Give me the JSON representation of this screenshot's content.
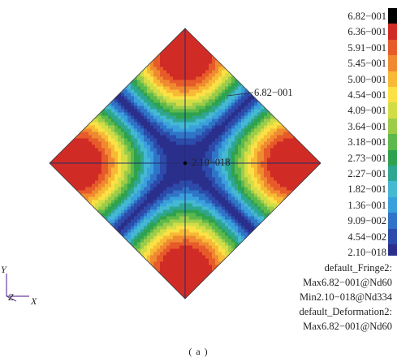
{
  "plot": {
    "max_marker_label": "6.82−001",
    "min_marker_label": "2.10−018"
  },
  "legend": {
    "levels": [
      {
        "label": "6.82−001",
        "color": "#000000"
      },
      {
        "label": "6.36−001",
        "color": "#d12b25"
      },
      {
        "label": "5.91−001",
        "color": "#e75b2a"
      },
      {
        "label": "5.45−001",
        "color": "#f08a30"
      },
      {
        "label": "5.00−001",
        "color": "#f7b936"
      },
      {
        "label": "4.54−001",
        "color": "#fbe145"
      },
      {
        "label": "4.09−001",
        "color": "#d2dd46"
      },
      {
        "label": "3.64−001",
        "color": "#9ccc49"
      },
      {
        "label": "3.18−001",
        "color": "#5db94b"
      },
      {
        "label": "2.73−001",
        "color": "#2fa24f"
      },
      {
        "label": "2.27−001",
        "color": "#2fa692"
      },
      {
        "label": "1.82−001",
        "color": "#45b8d2"
      },
      {
        "label": "1.36−001",
        "color": "#3aa0dc"
      },
      {
        "label": "9.09−002",
        "color": "#2f74c6"
      },
      {
        "label": "4.54−002",
        "color": "#2c4bab"
      },
      {
        "label": "2.10−018",
        "color": "#2b2f8c"
      }
    ]
  },
  "info": {
    "line1": "default_Fringe2:",
    "line2": "Max6.82−001@Nd60",
    "line3": "Min2.10−018@Nd334",
    "line4": "default_Deformation2:",
    "line5": "Max6.82−001@Nd60"
  },
  "axes": {
    "y_label": "Y",
    "z_label": "Z",
    "x_label": "X"
  },
  "caption": "( a )"
}
